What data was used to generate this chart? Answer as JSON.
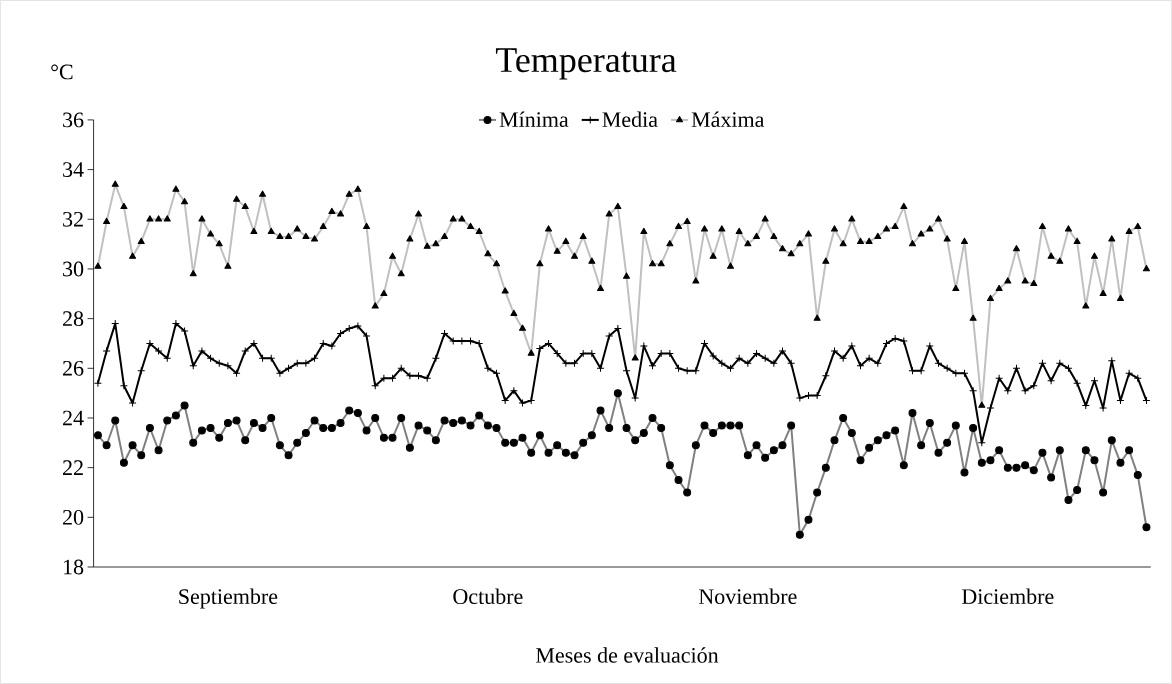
{
  "chart_data": {
    "type": "line",
    "title": "Temperatura",
    "ylabel": "°C",
    "xlabel": "Meses de evaluación",
    "categories": [
      null,
      null,
      null,
      null,
      null,
      null,
      null,
      null,
      null,
      null,
      null,
      null,
      null,
      null,
      null,
      "Septiembre",
      null,
      null,
      null,
      null,
      null,
      null,
      null,
      null,
      null,
      null,
      null,
      null,
      null,
      null,
      null,
      null,
      null,
      null,
      null,
      null,
      null,
      null,
      null,
      null,
      null,
      null,
      null,
      null,
      null,
      "Octubre",
      null,
      null,
      null,
      null,
      null,
      null,
      null,
      null,
      null,
      null,
      null,
      null,
      null,
      null,
      null,
      null,
      null,
      null,
      null,
      null,
      null,
      null,
      null,
      null,
      null,
      null,
      null,
      null,
      null,
      "Noviembre",
      null,
      null,
      null,
      null,
      null,
      null,
      null,
      null,
      null,
      null,
      null,
      null,
      null,
      null,
      null,
      null,
      null,
      null,
      null,
      null,
      null,
      null,
      null,
      null,
      null,
      null,
      null,
      null,
      null,
      "Diciembre",
      null,
      null,
      null,
      null,
      null,
      null,
      null,
      null,
      null,
      null,
      null,
      null,
      null,
      null,
      null,
      null
    ],
    "series": [
      {
        "name": "Mínima",
        "color": "#808080",
        "marker": "circle",
        "values": [
          23.3,
          22.9,
          23.9,
          22.2,
          22.9,
          22.5,
          23.6,
          22.7,
          23.9,
          24.1,
          24.5,
          23.0,
          23.5,
          23.6,
          23.2,
          23.8,
          23.9,
          23.1,
          23.8,
          23.6,
          24.0,
          22.9,
          22.5,
          23.0,
          23.4,
          23.9,
          23.6,
          23.6,
          23.8,
          24.3,
          24.2,
          23.5,
          24.0,
          23.2,
          23.2,
          24.0,
          22.8,
          23.7,
          23.5,
          23.1,
          23.9,
          23.8,
          23.9,
          23.7,
          24.1,
          23.7,
          23.6,
          23.0,
          23.0,
          23.2,
          22.6,
          23.3,
          22.6,
          22.9,
          22.6,
          22.5,
          23.0,
          23.3,
          24.3,
          23.6,
          25.0,
          23.6,
          23.1,
          23.4,
          24.0,
          23.6,
          22.1,
          21.5,
          21.0,
          22.9,
          23.7,
          23.4,
          23.7,
          23.7,
          23.7,
          22.5,
          22.9,
          22.4,
          22.7,
          22.9,
          23.7,
          19.3,
          19.9,
          21.0,
          22.0,
          23.1,
          24.0,
          23.4,
          22.3,
          22.8,
          23.1,
          23.3,
          23.5,
          22.1,
          24.2,
          22.9,
          23.8,
          22.6,
          23.0,
          23.7,
          21.8,
          23.6,
          22.2,
          22.3,
          22.7,
          22.0,
          22.0,
          22.1,
          21.9,
          22.6,
          21.6,
          22.7,
          20.7,
          21.1,
          22.7,
          22.3,
          21.0,
          23.1,
          22.2,
          22.7,
          21.7,
          19.6
        ]
      },
      {
        "name": "Media",
        "color": "#000000",
        "marker": "cross",
        "values": [
          25.4,
          26.7,
          27.8,
          25.3,
          24.6,
          25.9,
          27.0,
          26.7,
          26.4,
          27.8,
          27.5,
          26.1,
          26.7,
          26.4,
          26.2,
          26.1,
          25.8,
          26.7,
          27.0,
          26.4,
          26.4,
          25.8,
          26.0,
          26.2,
          26.2,
          26.4,
          27.0,
          26.9,
          27.4,
          27.6,
          27.7,
          27.3,
          25.3,
          25.6,
          25.6,
          26.0,
          25.7,
          25.7,
          25.6,
          26.4,
          27.4,
          27.1,
          27.1,
          27.1,
          27.0,
          26.0,
          25.8,
          24.7,
          25.1,
          24.6,
          24.7,
          26.8,
          27.0,
          26.6,
          26.2,
          26.2,
          26.6,
          26.6,
          26.0,
          27.3,
          27.6,
          25.9,
          24.8,
          26.9,
          26.1,
          26.6,
          26.6,
          26.0,
          25.9,
          25.9,
          27.0,
          26.5,
          26.2,
          26.0,
          26.4,
          26.2,
          26.6,
          26.4,
          26.2,
          26.7,
          26.2,
          24.8,
          24.9,
          24.9,
          25.7,
          26.7,
          26.4,
          26.9,
          26.1,
          26.4,
          26.2,
          27.0,
          27.2,
          27.1,
          25.9,
          25.9,
          26.9,
          26.2,
          26.0,
          25.8,
          25.8,
          25.1,
          23.0,
          24.4,
          25.6,
          25.1,
          26.0,
          25.1,
          25.3,
          26.2,
          25.5,
          26.2,
          26.0,
          25.4,
          24.5,
          25.5,
          24.4,
          26.3,
          24.7,
          25.8,
          25.6,
          24.7
        ]
      },
      {
        "name": "Máxima",
        "color": "#c0c0c0",
        "marker": "triangle",
        "values": [
          30.1,
          31.9,
          33.4,
          32.5,
          30.5,
          31.1,
          32.0,
          32.0,
          32.0,
          33.2,
          32.7,
          29.8,
          32.0,
          31.4,
          31.0,
          30.1,
          32.8,
          32.5,
          31.5,
          33.0,
          31.5,
          31.3,
          31.3,
          31.6,
          31.3,
          31.2,
          31.7,
          32.3,
          32.2,
          33.0,
          33.2,
          31.7,
          28.5,
          29.0,
          30.5,
          29.8,
          31.2,
          32.2,
          30.9,
          31.0,
          31.3,
          32.0,
          32.0,
          31.7,
          31.5,
          30.6,
          30.2,
          29.1,
          28.2,
          27.6,
          26.6,
          30.2,
          31.6,
          30.7,
          31.1,
          30.5,
          31.3,
          30.3,
          29.2,
          32.2,
          32.5,
          29.7,
          26.4,
          31.5,
          30.2,
          30.2,
          31.0,
          31.7,
          31.9,
          29.5,
          31.6,
          30.5,
          31.6,
          30.1,
          31.5,
          31.0,
          31.3,
          32.0,
          31.3,
          30.8,
          30.6,
          31.0,
          31.4,
          28.0,
          30.3,
          31.6,
          31.0,
          32.0,
          31.1,
          31.1,
          31.3,
          31.6,
          31.7,
          32.5,
          31.0,
          31.4,
          31.6,
          32.0,
          31.2,
          29.2,
          31.1,
          28.0,
          24.5,
          28.8,
          29.2,
          29.5,
          30.8,
          29.5,
          29.4,
          31.7,
          30.5,
          30.3,
          31.6,
          31.1,
          28.5,
          30.5,
          29.0,
          31.2,
          28.8,
          31.5,
          31.7,
          30.0
        ]
      }
    ],
    "ylim": [
      18,
      36
    ],
    "yticks": [
      18,
      20,
      22,
      24,
      26,
      28,
      30,
      32,
      34,
      36
    ],
    "grid": false,
    "legend": "top",
    "line_style": "solid"
  }
}
